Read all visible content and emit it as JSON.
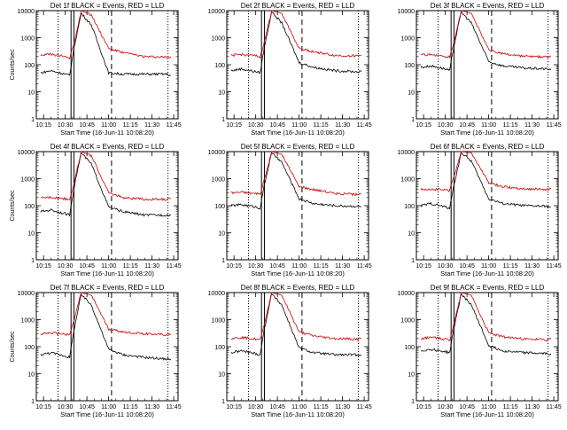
{
  "chart_data": [
    {
      "type": "line",
      "title": "Det 1f BLACK = Events, RED = LLD",
      "xlabel": "Start Time (16-Jun-11 10:08:20)",
      "ylabel": "Counts/sec",
      "yscale": "log",
      "ylim": [
        1,
        10000
      ],
      "xlim": [
        "10:10",
        "11:48"
      ],
      "x_tick_labels": [
        "10:15",
        "10:30",
        "10:45",
        "11:00",
        "11:15",
        "11:30",
        "11:45"
      ],
      "y_tick_labels": [
        "1",
        "10",
        "100",
        "1000",
        "10000"
      ],
      "legend": [],
      "series": [
        {
          "name": "Events",
          "color": "#000000",
          "x": [
            "10:13",
            "10:20",
            "10:30",
            "10:33",
            "10:36",
            "10:41",
            "10:48",
            "11:00",
            "11:10",
            "11:25",
            "11:40",
            "11:43"
          ],
          "y": [
            50,
            60,
            45,
            40,
            400,
            8000,
            3000,
            50,
            45,
            45,
            45,
            40
          ]
        },
        {
          "name": "LLD",
          "color": "#cc0000",
          "x": [
            "10:13",
            "10:20",
            "10:30",
            "10:33",
            "10:36",
            "10:41",
            "10:48",
            "11:00",
            "11:10",
            "11:25",
            "11:40",
            "11:43"
          ],
          "y": [
            230,
            240,
            200,
            180,
            600,
            10000,
            7000,
            400,
            280,
            200,
            190,
            200
          ]
        }
      ],
      "vlines": [
        {
          "x": "10:25",
          "style": "dotted"
        },
        {
          "x": "10:34",
          "style": "solid"
        },
        {
          "x": "10:36",
          "style": "solid"
        },
        {
          "x": "11:02",
          "style": "dashed"
        },
        {
          "x": "11:41",
          "style": "dotted"
        }
      ]
    },
    {
      "type": "line",
      "title": "Det 2f BLACK = Events, RED = LLD",
      "xlabel": "Start Time (16-Jun-11 10:08:20)",
      "ylabel": "",
      "yscale": "log",
      "ylim": [
        1,
        10000
      ],
      "xlim": [
        "10:10",
        "11:48"
      ],
      "x_tick_labels": [
        "10:15",
        "10:30",
        "10:45",
        "11:00",
        "11:15",
        "11:30",
        "11:45"
      ],
      "y_tick_labels": [
        "1",
        "10",
        "100",
        "1000",
        "10000"
      ],
      "legend": [],
      "series": [
        {
          "name": "Events",
          "color": "#000000",
          "x": [
            "10:13",
            "10:20",
            "10:30",
            "10:33",
            "10:36",
            "10:41",
            "10:48",
            "11:00",
            "11:10",
            "11:25",
            "11:40",
            "11:43"
          ],
          "y": [
            60,
            70,
            55,
            50,
            450,
            9000,
            3500,
            120,
            80,
            60,
            55,
            55
          ]
        },
        {
          "name": "LLD",
          "color": "#cc0000",
          "x": [
            "10:13",
            "10:20",
            "10:30",
            "10:33",
            "10:36",
            "10:41",
            "10:48",
            "11:00",
            "11:10",
            "11:25",
            "11:40",
            "11:43"
          ],
          "y": [
            220,
            240,
            210,
            190,
            700,
            10000,
            8000,
            400,
            300,
            220,
            210,
            220
          ]
        }
      ],
      "vlines": [
        {
          "x": "10:25",
          "style": "dotted"
        },
        {
          "x": "10:34",
          "style": "solid"
        },
        {
          "x": "10:36",
          "style": "solid"
        },
        {
          "x": "11:02",
          "style": "dashed"
        },
        {
          "x": "11:41",
          "style": "dotted"
        }
      ]
    },
    {
      "type": "line",
      "title": "Det 3f BLACK = Events, RED = LLD",
      "xlabel": "Start Time (16-Jun-11 10:08:20)",
      "ylabel": "",
      "yscale": "log",
      "ylim": [
        1,
        10000
      ],
      "xlim": [
        "10:10",
        "11:48"
      ],
      "x_tick_labels": [
        "10:15",
        "10:30",
        "10:45",
        "11:00",
        "11:15",
        "11:30",
        "11:45"
      ],
      "y_tick_labels": [
        "1",
        "10",
        "100",
        "1000",
        "10000"
      ],
      "legend": [],
      "series": [
        {
          "name": "Events",
          "color": "#000000",
          "x": [
            "10:13",
            "10:20",
            "10:30",
            "10:33",
            "10:36",
            "10:41",
            "10:48",
            "11:00",
            "11:10",
            "11:25",
            "11:40",
            "11:43"
          ],
          "y": [
            80,
            90,
            70,
            60,
            500,
            9000,
            3500,
            130,
            90,
            75,
            70,
            65
          ]
        },
        {
          "name": "LLD",
          "color": "#cc0000",
          "x": [
            "10:13",
            "10:20",
            "10:30",
            "10:33",
            "10:36",
            "10:41",
            "10:48",
            "11:00",
            "11:10",
            "11:25",
            "11:40",
            "11:43"
          ],
          "y": [
            230,
            240,
            200,
            190,
            700,
            10000,
            8000,
            350,
            250,
            200,
            190,
            200
          ]
        }
      ],
      "vlines": [
        {
          "x": "10:25",
          "style": "dotted"
        },
        {
          "x": "10:34",
          "style": "solid"
        },
        {
          "x": "10:36",
          "style": "solid"
        },
        {
          "x": "11:02",
          "style": "dashed"
        },
        {
          "x": "11:41",
          "style": "dotted"
        }
      ]
    },
    {
      "type": "line",
      "title": "Det 4f BLACK = Events, RED = LLD",
      "xlabel": "Start Time (16-Jun-11 10:08:20)",
      "ylabel": "Counts/sec",
      "yscale": "log",
      "ylim": [
        1,
        10000
      ],
      "xlim": [
        "10:10",
        "11:48"
      ],
      "x_tick_labels": [
        "10:15",
        "10:30",
        "10:45",
        "11:00",
        "11:15",
        "11:30",
        "11:45"
      ],
      "y_tick_labels": [
        "1",
        "10",
        "100",
        "1000",
        "10000"
      ],
      "legend": [],
      "series": [
        {
          "name": "Events",
          "color": "#000000",
          "x": [
            "10:13",
            "10:20",
            "10:30",
            "10:33",
            "10:36",
            "10:41",
            "10:48",
            "11:00",
            "11:10",
            "11:25",
            "11:40",
            "11:43"
          ],
          "y": [
            60,
            70,
            50,
            45,
            450,
            9000,
            3500,
            90,
            60,
            45,
            45,
            45
          ]
        },
        {
          "name": "LLD",
          "color": "#cc0000",
          "x": [
            "10:13",
            "10:20",
            "10:30",
            "10:33",
            "10:36",
            "10:41",
            "10:48",
            "11:00",
            "11:10",
            "11:25",
            "11:40",
            "11:43"
          ],
          "y": [
            190,
            210,
            180,
            170,
            650,
            10000,
            7000,
            300,
            200,
            170,
            170,
            180
          ]
        }
      ],
      "vlines": [
        {
          "x": "10:25",
          "style": "dotted"
        },
        {
          "x": "10:34",
          "style": "solid"
        },
        {
          "x": "10:36",
          "style": "solid"
        },
        {
          "x": "11:02",
          "style": "dashed"
        },
        {
          "x": "11:41",
          "style": "dotted"
        }
      ]
    },
    {
      "type": "line",
      "title": "Det 5f BLACK = Events, RED = LLD",
      "xlabel": "Start Time (16-Jun-11 10:08:20)",
      "ylabel": "",
      "yscale": "log",
      "ylim": [
        1,
        10000
      ],
      "xlim": [
        "10:10",
        "11:48"
      ],
      "x_tick_labels": [
        "10:15",
        "10:30",
        "10:45",
        "11:00",
        "11:15",
        "11:30",
        "11:45"
      ],
      "y_tick_labels": [
        "1",
        "10",
        "100",
        "1000",
        "10000"
      ],
      "legend": [],
      "series": [
        {
          "name": "Events",
          "color": "#000000",
          "x": [
            "10:13",
            "10:20",
            "10:30",
            "10:33",
            "10:36",
            "10:41",
            "10:48",
            "11:00",
            "11:10",
            "11:25",
            "11:40",
            "11:43"
          ],
          "y": [
            100,
            110,
            90,
            80,
            600,
            9000,
            4000,
            180,
            120,
            100,
            95,
            90
          ]
        },
        {
          "name": "LLD",
          "color": "#cc0000",
          "x": [
            "10:13",
            "10:20",
            "10:30",
            "10:33",
            "10:36",
            "10:41",
            "10:48",
            "11:00",
            "11:10",
            "11:25",
            "11:40",
            "11:43"
          ],
          "y": [
            300,
            320,
            280,
            260,
            900,
            10000,
            8000,
            500,
            400,
            280,
            260,
            280
          ]
        }
      ],
      "vlines": [
        {
          "x": "10:25",
          "style": "dotted"
        },
        {
          "x": "10:34",
          "style": "solid"
        },
        {
          "x": "10:36",
          "style": "solid"
        },
        {
          "x": "11:02",
          "style": "dashed"
        },
        {
          "x": "11:41",
          "style": "dotted"
        }
      ]
    },
    {
      "type": "line",
      "title": "Det 6f BLACK = Events, RED = LLD",
      "xlabel": "Start Time (16-Jun-11 10:08:20)",
      "ylabel": "",
      "yscale": "log",
      "ylim": [
        1,
        10000
      ],
      "xlim": [
        "10:10",
        "11:48"
      ],
      "x_tick_labels": [
        "10:15",
        "10:30",
        "10:45",
        "11:00",
        "11:15",
        "11:30",
        "11:45"
      ],
      "y_tick_labels": [
        "1",
        "10",
        "100",
        "1000",
        "10000"
      ],
      "legend": [],
      "series": [
        {
          "name": "Events",
          "color": "#000000",
          "x": [
            "10:13",
            "10:20",
            "10:30",
            "10:33",
            "10:36",
            "10:41",
            "10:48",
            "11:00",
            "11:10",
            "11:25",
            "11:40",
            "11:43"
          ],
          "y": [
            100,
            120,
            90,
            80,
            600,
            9000,
            4500,
            180,
            120,
            100,
            95,
            90
          ]
        },
        {
          "name": "LLD",
          "color": "#cc0000",
          "x": [
            "10:13",
            "10:20",
            "10:30",
            "10:33",
            "10:36",
            "10:41",
            "10:48",
            "11:00",
            "11:10",
            "11:25",
            "11:40",
            "11:43"
          ],
          "y": [
            400,
            420,
            380,
            360,
            1200,
            10000,
            9000,
            700,
            500,
            420,
            400,
            420
          ]
        }
      ],
      "vlines": [
        {
          "x": "10:25",
          "style": "dotted"
        },
        {
          "x": "10:34",
          "style": "solid"
        },
        {
          "x": "10:36",
          "style": "solid"
        },
        {
          "x": "11:02",
          "style": "dashed"
        },
        {
          "x": "11:41",
          "style": "dotted"
        }
      ]
    },
    {
      "type": "line",
      "title": "Det 7f BLACK = Events, RED = LLD",
      "xlabel": "Start Time (16-Jun-11 10:08:20)",
      "ylabel": "Counts/sec",
      "yscale": "log",
      "ylim": [
        1,
        10000
      ],
      "xlim": [
        "10:10",
        "11:48"
      ],
      "x_tick_labels": [
        "10:15",
        "10:30",
        "10:45",
        "11:00",
        "11:15",
        "11:30",
        "11:45"
      ],
      "y_tick_labels": [
        "1",
        "10",
        "100",
        "1000",
        "10000"
      ],
      "legend": [],
      "series": [
        {
          "name": "Events",
          "color": "#000000",
          "x": [
            "10:13",
            "10:20",
            "10:30",
            "10:33",
            "10:36",
            "10:41",
            "10:48",
            "11:00",
            "11:10",
            "11:25",
            "11:40",
            "11:43"
          ],
          "y": [
            50,
            60,
            45,
            40,
            400,
            8500,
            3500,
            80,
            50,
            40,
            35,
            35
          ]
        },
        {
          "name": "LLD",
          "color": "#cc0000",
          "x": [
            "10:13",
            "10:20",
            "10:30",
            "10:33",
            "10:36",
            "10:41",
            "10:48",
            "11:00",
            "11:10",
            "11:25",
            "11:40",
            "11:43"
          ],
          "y": [
            300,
            320,
            290,
            270,
            900,
            10000,
            8000,
            450,
            350,
            300,
            280,
            300
          ]
        }
      ],
      "vlines": [
        {
          "x": "10:25",
          "style": "dotted"
        },
        {
          "x": "10:34",
          "style": "solid"
        },
        {
          "x": "10:36",
          "style": "solid"
        },
        {
          "x": "11:02",
          "style": "dashed"
        },
        {
          "x": "11:41",
          "style": "dotted"
        }
      ]
    },
    {
      "type": "line",
      "title": "Det 8f BLACK = Events, RED = LLD",
      "xlabel": "Start Time (16-Jun-11 10:08:20)",
      "ylabel": "",
      "yscale": "log",
      "ylim": [
        1,
        10000
      ],
      "xlim": [
        "10:10",
        "11:48"
      ],
      "x_tick_labels": [
        "10:15",
        "10:30",
        "10:45",
        "11:00",
        "11:15",
        "11:30",
        "11:45"
      ],
      "y_tick_labels": [
        "1",
        "10",
        "100",
        "1000",
        "10000"
      ],
      "legend": [],
      "series": [
        {
          "name": "Events",
          "color": "#000000",
          "x": [
            "10:13",
            "10:20",
            "10:30",
            "10:33",
            "10:36",
            "10:41",
            "10:48",
            "11:00",
            "11:10",
            "11:25",
            "11:40",
            "11:43"
          ],
          "y": [
            60,
            70,
            55,
            50,
            450,
            9000,
            3500,
            90,
            60,
            50,
            50,
            50
          ]
        },
        {
          "name": "LLD",
          "color": "#cc0000",
          "x": [
            "10:13",
            "10:20",
            "10:30",
            "10:33",
            "10:36",
            "10:41",
            "10:48",
            "11:00",
            "11:10",
            "11:25",
            "11:40",
            "11:43"
          ],
          "y": [
            200,
            220,
            190,
            180,
            700,
            10000,
            8000,
            350,
            250,
            200,
            190,
            200
          ]
        }
      ],
      "vlines": [
        {
          "x": "10:25",
          "style": "dotted"
        },
        {
          "x": "10:34",
          "style": "solid"
        },
        {
          "x": "10:36",
          "style": "solid"
        },
        {
          "x": "11:02",
          "style": "dashed"
        },
        {
          "x": "11:41",
          "style": "dotted"
        }
      ]
    },
    {
      "type": "line",
      "title": "Det 9f BLACK = Events, RED = LLD",
      "xlabel": "Start Time (16-Jun-11 10:08:20)",
      "ylabel": "",
      "yscale": "log",
      "ylim": [
        1,
        10000
      ],
      "xlim": [
        "10:10",
        "11:48"
      ],
      "x_tick_labels": [
        "10:15",
        "10:30",
        "10:45",
        "11:00",
        "11:15",
        "11:30",
        "11:45"
      ],
      "y_tick_labels": [
        "1",
        "10",
        "100",
        "1000",
        "10000"
      ],
      "legend": [],
      "series": [
        {
          "name": "Events",
          "color": "#000000",
          "x": [
            "10:13",
            "10:20",
            "10:30",
            "10:33",
            "10:36",
            "10:41",
            "10:48",
            "11:00",
            "11:10",
            "11:25",
            "11:40",
            "11:43"
          ],
          "y": [
            70,
            80,
            65,
            60,
            500,
            9000,
            3500,
            110,
            70,
            60,
            55,
            55
          ]
        },
        {
          "name": "LLD",
          "color": "#cc0000",
          "x": [
            "10:13",
            "10:20",
            "10:30",
            "10:33",
            "10:36",
            "10:41",
            "10:48",
            "11:00",
            "11:10",
            "11:25",
            "11:40",
            "11:43"
          ],
          "y": [
            200,
            220,
            190,
            180,
            700,
            10000,
            8000,
            320,
            230,
            190,
            180,
            190
          ]
        }
      ],
      "vlines": [
        {
          "x": "10:25",
          "style": "dotted"
        },
        {
          "x": "10:34",
          "style": "solid"
        },
        {
          "x": "10:36",
          "style": "solid"
        },
        {
          "x": "11:02",
          "style": "dashed"
        },
        {
          "x": "11:41",
          "style": "dotted"
        }
      ]
    }
  ]
}
